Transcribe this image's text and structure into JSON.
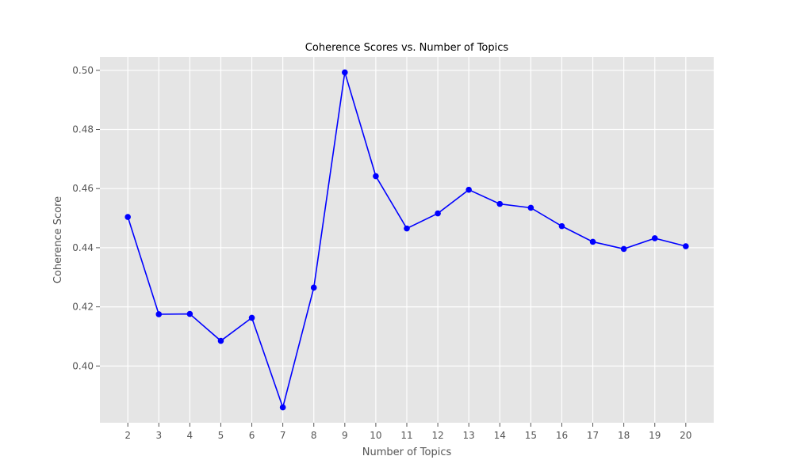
{
  "chart_data": {
    "type": "line",
    "title": "Coherence Scores vs. Number of Topics",
    "xlabel": "Number of Topics",
    "ylabel": "Coherence Score",
    "x": [
      2,
      3,
      4,
      5,
      6,
      7,
      8,
      9,
      10,
      11,
      12,
      13,
      14,
      15,
      16,
      17,
      18,
      19,
      20
    ],
    "series": [
      {
        "values": [
          0.4504,
          0.4175,
          0.4176,
          0.4085,
          0.4163,
          0.386,
          0.4265,
          0.4993,
          0.4642,
          0.4465,
          0.4516,
          0.4596,
          0.4548,
          0.4535,
          0.4473,
          0.442,
          0.4396,
          0.4432,
          0.4405
        ]
      }
    ],
    "x_ticks": [
      "2",
      "3",
      "4",
      "5",
      "6",
      "7",
      "8",
      "9",
      "10",
      "11",
      "12",
      "13",
      "14",
      "15",
      "16",
      "17",
      "18",
      "19",
      "20"
    ],
    "y_ticks": [
      "0.40",
      "0.42",
      "0.44",
      "0.46",
      "0.48",
      "0.50"
    ],
    "xlim": [
      1.1,
      20.9
    ],
    "ylim": [
      0.3808,
      0.5045
    ],
    "grid": true,
    "line_color": "#0000ff",
    "background_color": "#e5e5e5",
    "grid_color": "#ffffff"
  }
}
